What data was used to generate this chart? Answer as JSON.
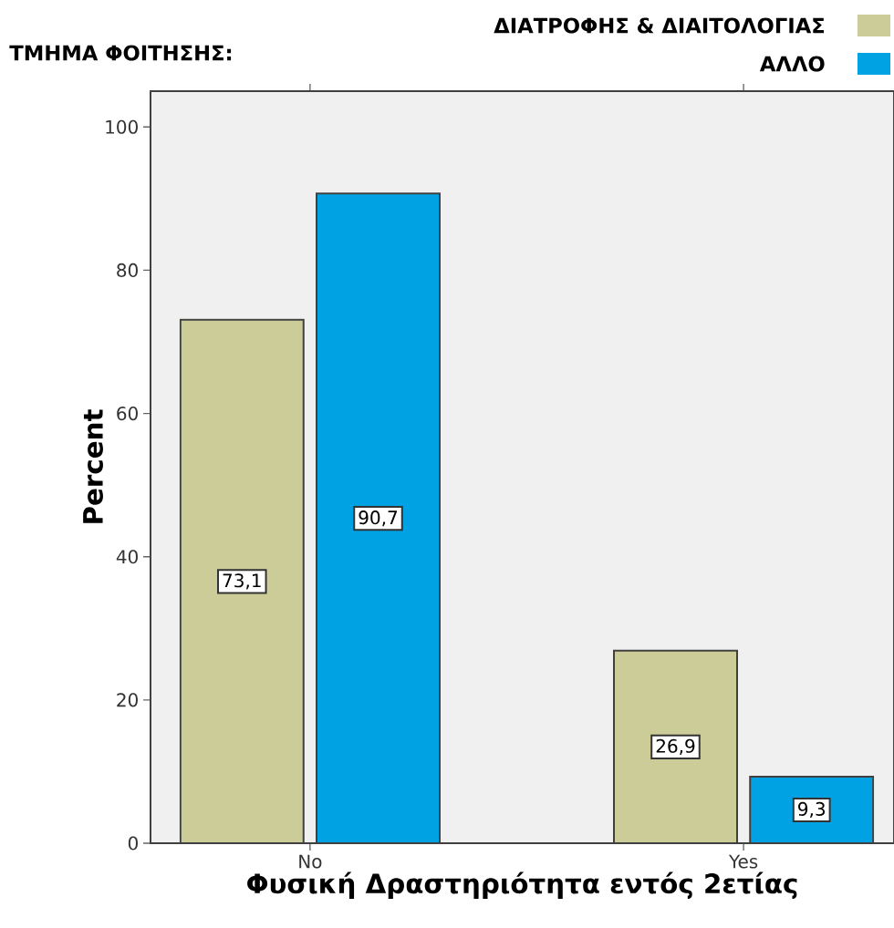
{
  "chart_data": {
    "type": "bar",
    "xlabel": "Φυσική Δραστηριότητα εντός 2ετίας",
    "ylabel": "Percent",
    "legend_title": "ΤΜΗΜΑ ΦΟΙΤΗΣΗΣ:",
    "categories": [
      "No",
      "Yes"
    ],
    "series": [
      {
        "name": "ΔΙΑΤΡΟΦΗΣ & ΔΙΑΙΤΟΛΟΓΙΑΣ",
        "color": "#cccc99",
        "values": [
          73.1,
          26.9
        ],
        "value_labels": [
          "73,1",
          "26,9"
        ]
      },
      {
        "name": "ΑΛΛΟ",
        "color": "#00a2e4",
        "values": [
          90.7,
          9.3
        ],
        "value_labels": [
          "90,7",
          "9,3"
        ]
      }
    ],
    "ylim": [
      0,
      105
    ],
    "yticks": [
      0,
      20,
      40,
      60,
      80,
      100
    ],
    "grid": false,
    "legend": "top right"
  }
}
